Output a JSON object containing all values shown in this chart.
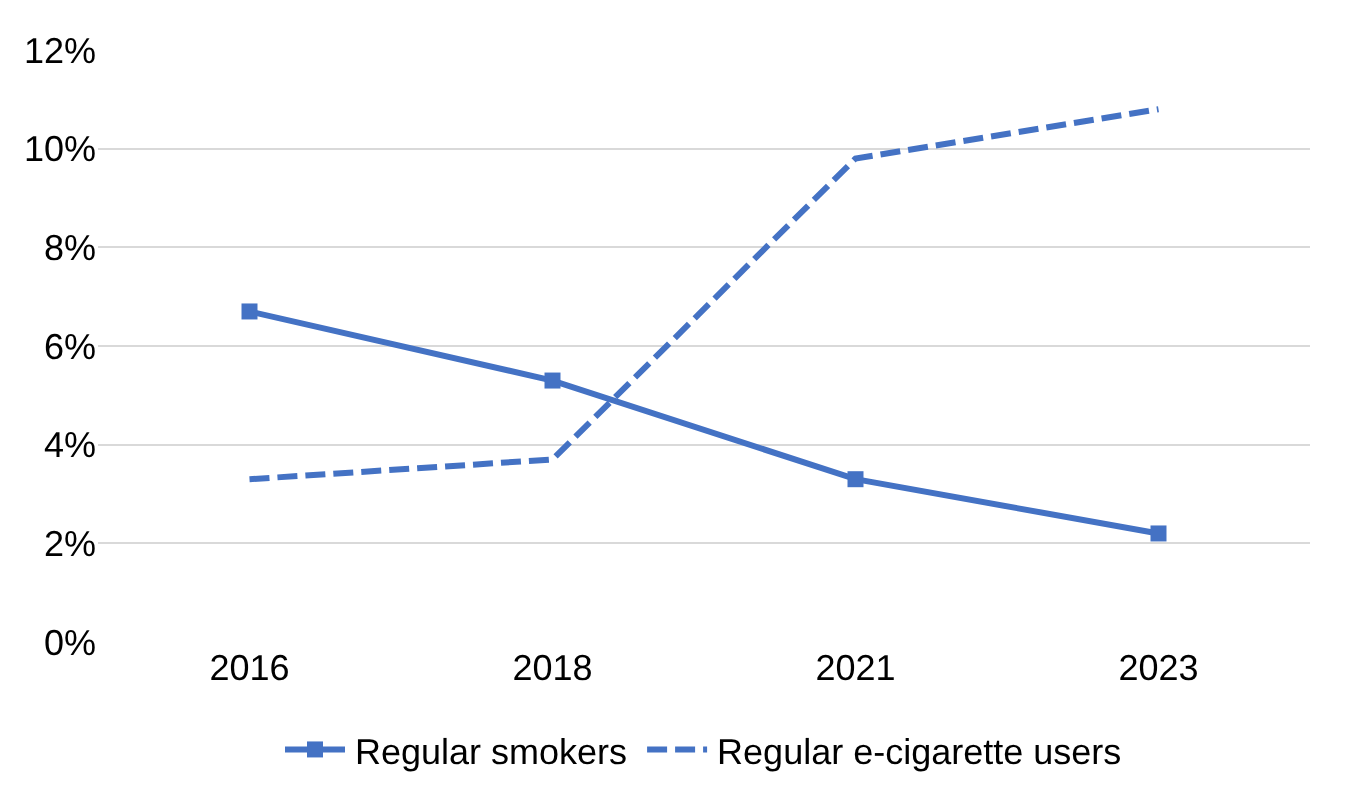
{
  "chart_data": {
    "type": "line",
    "categories": [
      "2016",
      "2018",
      "2021",
      "2023"
    ],
    "series": [
      {
        "name": "Regular smokers",
        "color": "#4472c4",
        "values": [
          6.7,
          5.3,
          3.3,
          2.2
        ],
        "marker": "square",
        "line_style": "solid"
      },
      {
        "name": "Regular e-cigarette users",
        "color": "#4472c4",
        "values": [
          3.3,
          3.7,
          9.8,
          10.8
        ],
        "marker": "none",
        "line_style": "dashed"
      }
    ],
    "ylim": [
      0,
      12
    ],
    "yticks": [
      {
        "value": 0,
        "label": "0%"
      },
      {
        "value": 2,
        "label": "2%"
      },
      {
        "value": 4,
        "label": "4%"
      },
      {
        "value": 6,
        "label": "6%"
      },
      {
        "value": 8,
        "label": "8%"
      },
      {
        "value": 10,
        "label": "10%"
      },
      {
        "value": 12,
        "label": "12%"
      }
    ],
    "grid": "y",
    "legend": "bottom"
  }
}
